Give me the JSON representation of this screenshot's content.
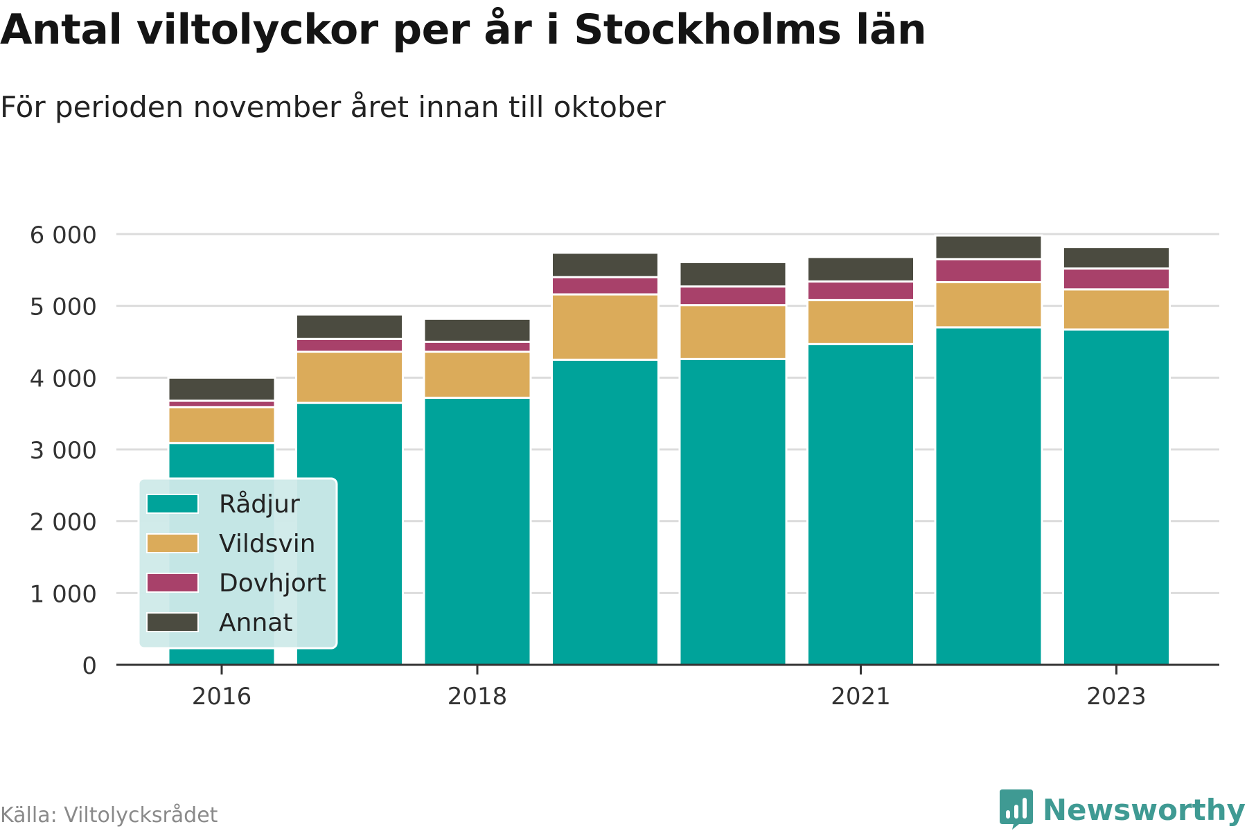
{
  "header": {
    "title": "Antal viltolyckor per år i Stockholms län",
    "subtitle": "För perioden november året innan till oktober"
  },
  "footer": {
    "source": "Källa: Viltolycksrådet",
    "brand": "Newsworthy",
    "brand_color": "#3f9a93",
    "brand_icon": "bar-chart-logo-icon"
  },
  "colors": {
    "Rådjur": "#00a39a",
    "Vildsvin": "#dbab5a",
    "Dovhjort": "#a8416a",
    "Annat": "#4b4b40",
    "grid": "#dcdcdc",
    "axis": "#333333",
    "legend_bg": "#cfeae9"
  },
  "chart_data": {
    "type": "bar",
    "stacked": true,
    "x": [
      2016,
      2017,
      2018,
      2019,
      2020,
      2021,
      2022,
      2023
    ],
    "xticks": [
      "2016",
      "2018",
      "2021",
      "2023"
    ],
    "yticks": [
      0,
      1000,
      2000,
      3000,
      4000,
      5000,
      6000
    ],
    "ytick_labels": [
      "0",
      "1 000",
      "2 000",
      "3 000",
      "4 000",
      "5 000",
      "6 000"
    ],
    "ylim": [
      0,
      6000
    ],
    "grid": "horizontal",
    "legend_position": "bottom-left",
    "series": [
      {
        "name": "Rådjur",
        "values": [
          3090,
          3650,
          3720,
          4250,
          4260,
          4470,
          4700,
          4670
        ]
      },
      {
        "name": "Vildsvin",
        "values": [
          500,
          710,
          640,
          910,
          750,
          610,
          630,
          560
        ]
      },
      {
        "name": "Dovhjort",
        "values": [
          90,
          180,
          140,
          240,
          260,
          260,
          320,
          290
        ]
      },
      {
        "name": "Annat",
        "values": [
          320,
          340,
          320,
          340,
          340,
          340,
          330,
          300
        ]
      }
    ]
  }
}
